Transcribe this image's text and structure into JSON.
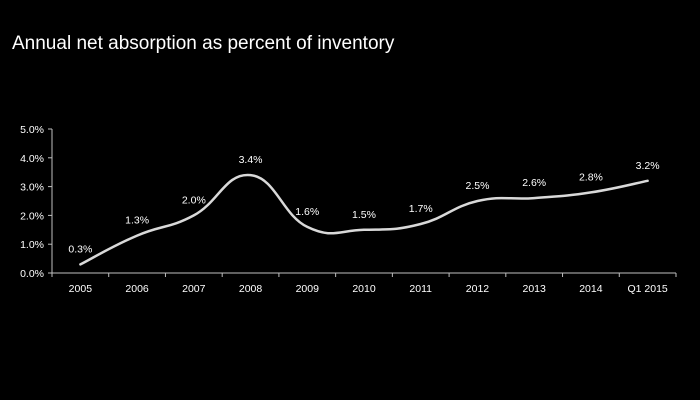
{
  "title": "Annual net absorption as percent of inventory",
  "chart_data": {
    "type": "line",
    "title": "Annual net absorption as percent of inventory",
    "xlabel": "",
    "ylabel": "",
    "categories": [
      "2005",
      "2006",
      "2007",
      "2008",
      "2009",
      "2010",
      "2011",
      "2012",
      "2013",
      "2014",
      "Q1 2015"
    ],
    "series": [
      {
        "values": [
          0.3,
          1.3,
          2.0,
          3.4,
          1.6,
          1.5,
          1.7,
          2.5,
          2.6,
          2.8,
          3.2
        ],
        "labels": [
          "0.3%",
          "1.3%",
          "2.0%",
          "3.4%",
          "1.6%",
          "1.5%",
          "1.7%",
          "2.5%",
          "2.6%",
          "2.8%",
          "3.2%"
        ]
      }
    ],
    "ylim": [
      0,
      5
    ],
    "yticks": [
      {
        "value": 0,
        "label": "0.0%"
      },
      {
        "value": 1,
        "label": "1.0%"
      },
      {
        "value": 2,
        "label": "2.0%"
      },
      {
        "value": 3,
        "label": "3.0%"
      },
      {
        "value": 4,
        "label": "4.0%"
      },
      {
        "value": 5,
        "label": "5.0%"
      }
    ],
    "grid": false,
    "legend": "none",
    "colors": {
      "background": "#000000",
      "line": "#d9d9d9",
      "axis": "#bfbfbf",
      "text": "#ffffff"
    }
  }
}
